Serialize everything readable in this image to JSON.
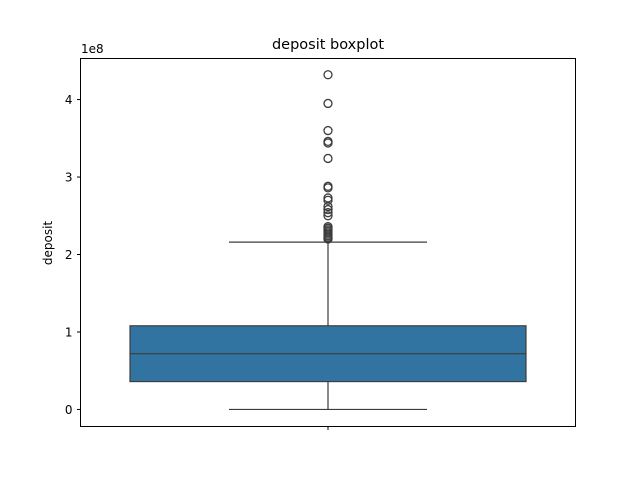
{
  "chart_data": {
    "type": "box",
    "title": "deposit boxplot",
    "ylabel": "deposit",
    "xlabel": "",
    "y_scale_label": "1e8",
    "ylim": [
      -0.22,
      4.53
    ],
    "yticks": [
      0,
      1,
      2,
      3,
      4
    ],
    "ytick_labels": [
      "0",
      "1",
      "2",
      "3",
      "4"
    ],
    "box_color": "#3274a1",
    "line_color": "#3d3d3d",
    "series": [
      {
        "whisker_low": 0.0,
        "q1": 0.36,
        "median": 0.72,
        "q3": 1.08,
        "whisker_high": 2.16,
        "outliers": [
          2.2,
          2.22,
          2.24,
          2.26,
          2.28,
          2.3,
          2.32,
          2.34,
          2.36,
          2.5,
          2.54,
          2.58,
          2.62,
          2.7,
          2.73,
          2.86,
          2.88,
          3.24,
          3.44,
          3.46,
          3.6,
          3.95,
          4.32
        ]
      }
    ]
  }
}
